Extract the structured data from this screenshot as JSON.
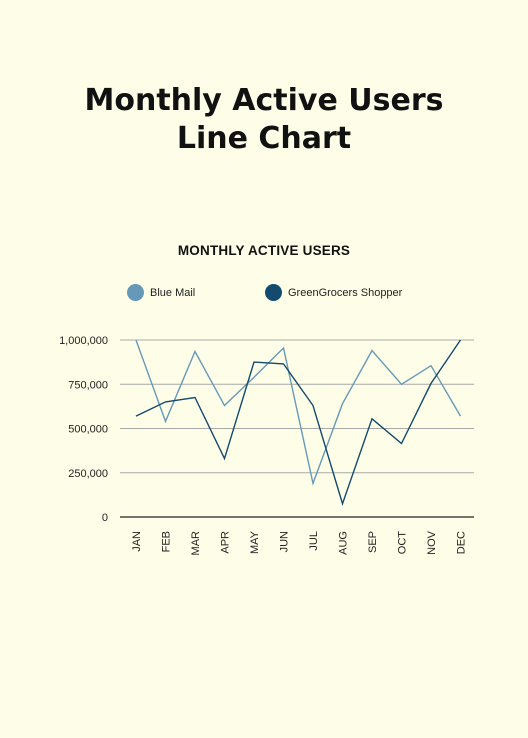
{
  "page": {
    "title_line1": "Monthly Active Users",
    "title_line2": "Line Chart"
  },
  "colors": {
    "background": "#fefee8",
    "blue_mail": "#6699b8",
    "greengrocers": "#134a6e",
    "grid": "#a9a9a9"
  },
  "chart_data": {
    "type": "line",
    "title": "MONTHLY ACTIVE USERS",
    "xlabel": "",
    "ylabel": "",
    "categories": [
      "JAN",
      "FEB",
      "MAR",
      "APR",
      "MAY",
      "JUN",
      "JUL",
      "AUG",
      "SEP",
      "OCT",
      "NOV",
      "DEC"
    ],
    "y_ticks": [
      "0",
      "250,000",
      "500,000",
      "750,000",
      "1,000,000"
    ],
    "ylim": [
      0,
      1000000
    ],
    "grid": true,
    "legend_position": "top",
    "series": [
      {
        "name": "Blue Mail",
        "color": "#6699b8",
        "values": [
          1000000,
          540000,
          935000,
          630000,
          790000,
          955000,
          190000,
          640000,
          940000,
          750000,
          855000,
          570000
        ]
      },
      {
        "name": "GreenGrocers Shopper",
        "color": "#134a6e",
        "values": [
          570000,
          650000,
          675000,
          330000,
          875000,
          865000,
          630000,
          75000,
          555000,
          415000,
          755000,
          1000000
        ]
      }
    ]
  }
}
